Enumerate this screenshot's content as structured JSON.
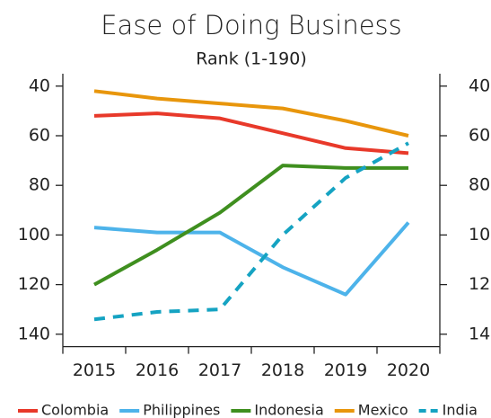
{
  "chart_data": {
    "type": "line",
    "title": "Ease of Doing Business",
    "subtitle": "Rank (1-190)",
    "categories": [
      "2015",
      "2016",
      "2017",
      "2018",
      "2019",
      "2020"
    ],
    "series": [
      {
        "name": "Colombia",
        "color": "#e8392a",
        "dashed": false,
        "values": [
          52,
          51,
          53,
          59,
          65,
          67
        ]
      },
      {
        "name": "Philippines",
        "color": "#4db3ea",
        "dashed": false,
        "values": [
          97,
          99,
          99,
          113,
          124,
          95
        ]
      },
      {
        "name": "Indonesia",
        "color": "#3f8f1f",
        "dashed": false,
        "values": [
          120,
          106,
          91,
          72,
          73,
          73
        ]
      },
      {
        "name": "Mexico",
        "color": "#e8960c",
        "dashed": false,
        "values": [
          42,
          45,
          47,
          49,
          54,
          60
        ]
      },
      {
        "name": "India",
        "color": "#15a3c2",
        "dashed": true,
        "values": [
          134,
          131,
          130,
          100,
          77,
          63
        ]
      }
    ],
    "ylim": [
      35,
      145
    ],
    "yticks": [
      40,
      60,
      80,
      100,
      120,
      140
    ],
    "y_inverted": true,
    "legend": "bottom"
  }
}
